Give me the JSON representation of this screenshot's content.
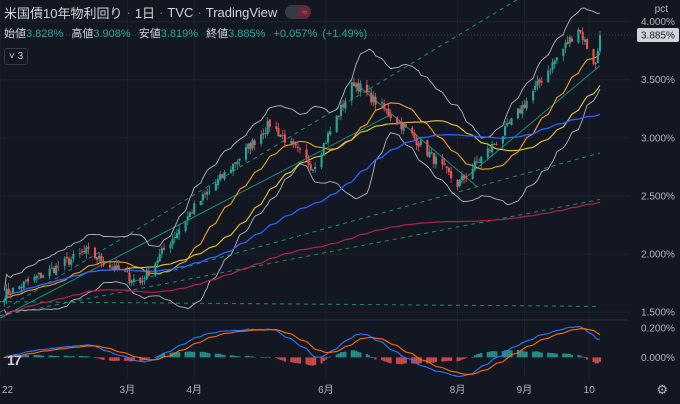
{
  "header": {
    "symbol": "米国債10年物利回り",
    "interval": "1日",
    "source": "TVC",
    "platform": "TradingView",
    "pill_left": "",
    "pill_right": "≈"
  },
  "ohlc": {
    "open_label": "始値",
    "open": "3.828%",
    "high_label": "高値",
    "high": "3.908%",
    "low_label": "安値",
    "low": "3.819%",
    "close_label": "終値",
    "close": "3.885%",
    "change": "+0.057%",
    "change_pct": "(+1.49%)"
  },
  "indicator_toggle": {
    "label": "3",
    "icon": "chevron-down-icon"
  },
  "axis": {
    "unit_label": "pct",
    "current_price_label": "3.885%"
  },
  "logo": {
    "text": "17"
  },
  "colors": {
    "up": "#26a69a",
    "down": "#ef5350",
    "background": "#131722",
    "ma_fast": "#f0a120",
    "ma_mid": "#e8c53a",
    "ma_blue": "#2962ff",
    "ma_long": "#b2244a",
    "bollinger": "#b2b5be",
    "macd": "#2979ff",
    "signal": "#ff6d00",
    "trendline": "#1e9f87"
  },
  "chart_data": [
    {
      "type": "candlestick",
      "title": "米国債10年物利回り · 1日 · TVC",
      "x_ticks": [
        "22",
        "3月",
        "4月",
        "6月",
        "8月",
        "9月",
        "10"
      ],
      "y_ticks": [
        "4.000%",
        "3.500%",
        "3.000%",
        "2.500%",
        "2.000%",
        "1.500%"
      ],
      "ylim": [
        1.45,
        4.1
      ],
      "key_closes": [
        {
          "date": "2022-01-01",
          "value": 1.63
        },
        {
          "date": "2022-01-14",
          "value": 1.76
        },
        {
          "date": "2022-02-10",
          "value": 2.02
        },
        {
          "date": "2022-03-07",
          "value": 1.75
        },
        {
          "date": "2022-04-01",
          "value": 2.4
        },
        {
          "date": "2022-05-06",
          "value": 3.12
        },
        {
          "date": "2022-05-26",
          "value": 2.75
        },
        {
          "date": "2022-06-14",
          "value": 3.48
        },
        {
          "date": "2022-07-08",
          "value": 3.08
        },
        {
          "date": "2022-08-01",
          "value": 2.6
        },
        {
          "date": "2022-08-22",
          "value": 3.03
        },
        {
          "date": "2022-09-26",
          "value": 3.95
        },
        {
          "date": "2022-10-04",
          "value": 3.62
        },
        {
          "date": "2022-10-06",
          "value": 3.885
        }
      ],
      "legend": [
        "Bollinger Bands",
        "MA",
        "MA",
        "MA",
        "MA"
      ],
      "grid": true
    },
    {
      "type": "macd",
      "y_ticks": [
        "0.200%",
        "0.000%"
      ],
      "ylim": [
        -0.14,
        0.24
      ]
    }
  ]
}
